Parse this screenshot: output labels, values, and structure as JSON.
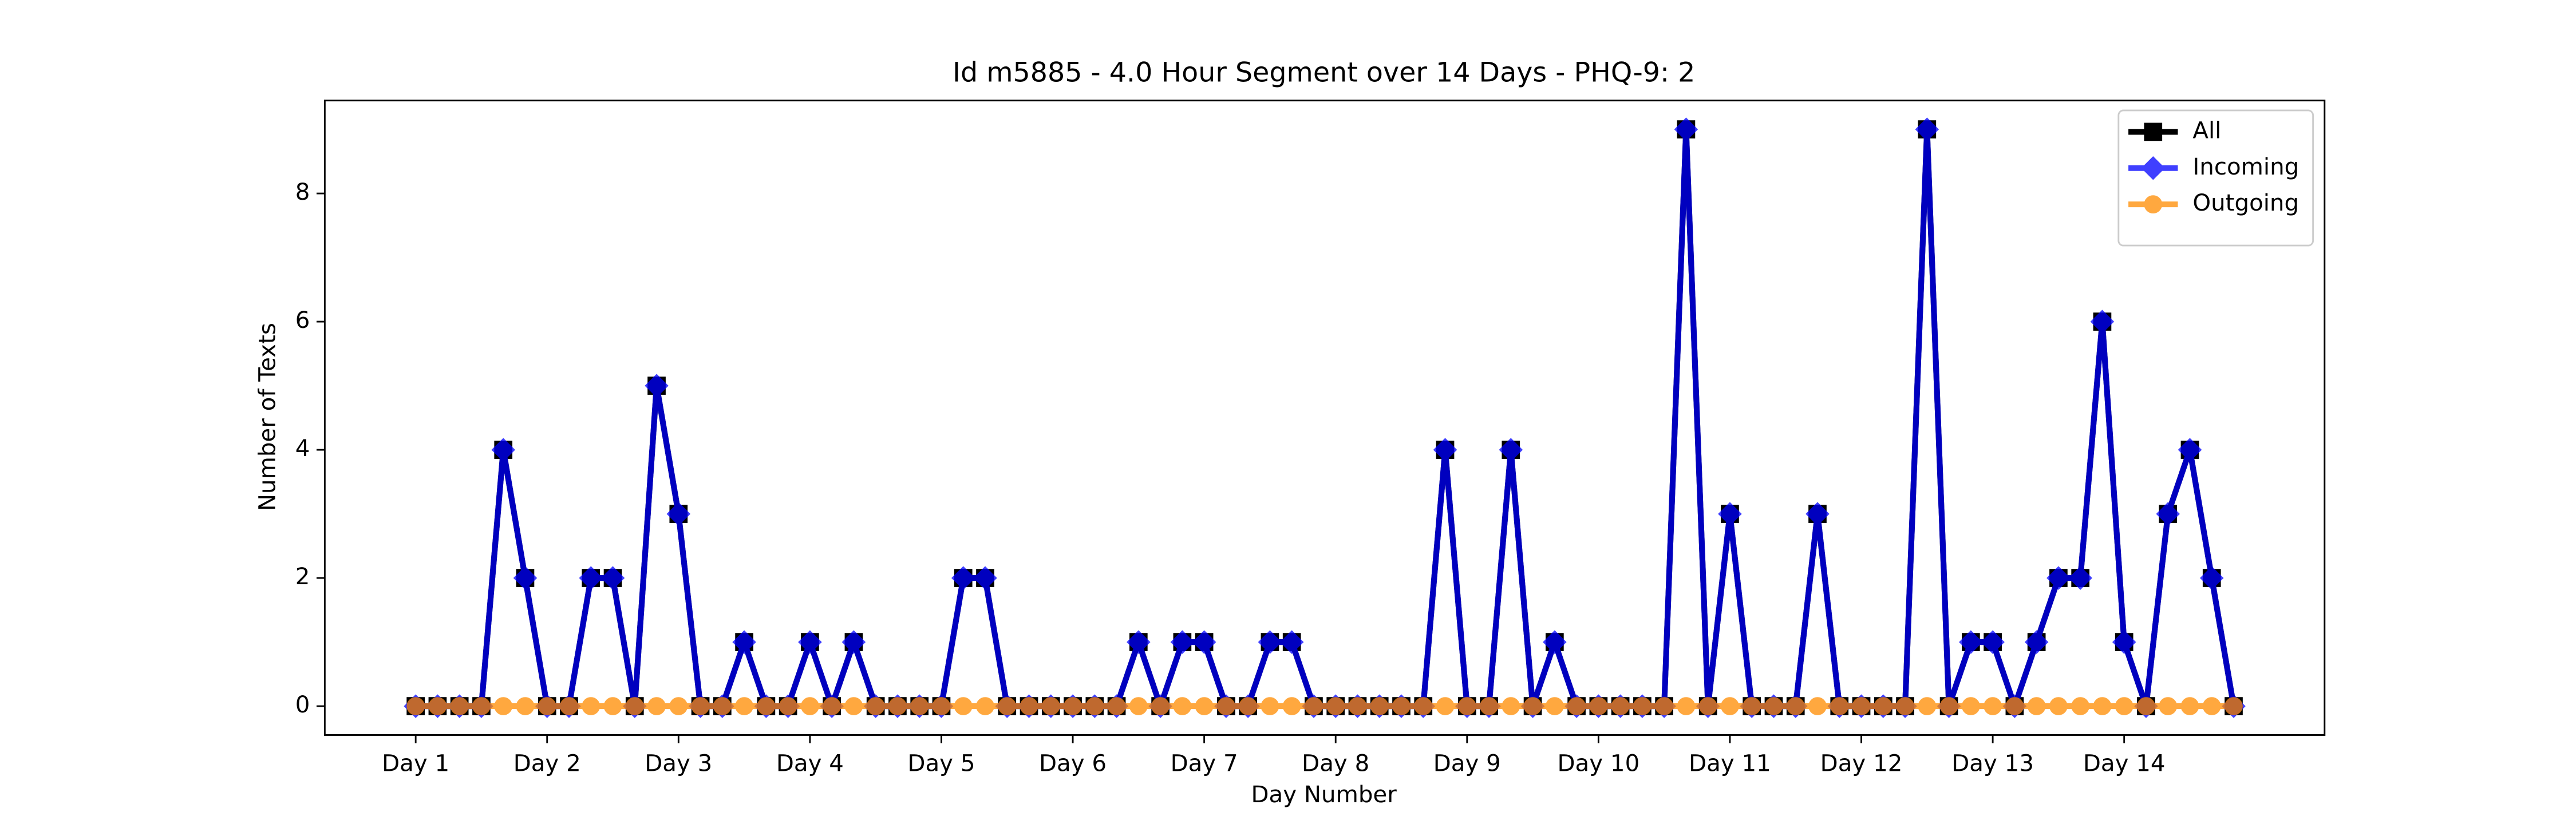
{
  "chart_data": {
    "type": "line",
    "title": "Id m5885 - 4.0 Hour Segment over 14 Days - PHQ-9: 2",
    "x_label": "Day Number",
    "y_label": "Number of Texts",
    "x": [
      0,
      1,
      2,
      3,
      4,
      5,
      6,
      7,
      8,
      9,
      10,
      11,
      12,
      13,
      14,
      15,
      16,
      17,
      18,
      19,
      20,
      21,
      22,
      23,
      24,
      25,
      26,
      27,
      28,
      29,
      30,
      31,
      32,
      33,
      34,
      35,
      36,
      37,
      38,
      39,
      40,
      41,
      42,
      43,
      44,
      45,
      46,
      47,
      48,
      49,
      50,
      51,
      52,
      53,
      54,
      55,
      56,
      57,
      58,
      59,
      60,
      61,
      62,
      63,
      64,
      65,
      66,
      67,
      68,
      69,
      70,
      71,
      72,
      73,
      74,
      75,
      76,
      77,
      78,
      79,
      80,
      81,
      82,
      83
    ],
    "series": [
      {
        "name": "All",
        "color": "#000000",
        "marker": "square",
        "values": [
          0,
          0,
          0,
          0,
          4,
          2,
          0,
          0,
          2,
          2,
          0,
          5,
          3,
          0,
          0,
          1,
          0,
          0,
          1,
          0,
          1,
          0,
          0,
          0,
          0,
          2,
          2,
          0,
          0,
          0,
          0,
          0,
          0,
          1,
          0,
          1,
          1,
          0,
          0,
          1,
          1,
          0,
          0,
          0,
          0,
          0,
          0,
          4,
          0,
          0,
          4,
          0,
          1,
          0,
          0,
          0,
          0,
          0,
          9,
          0,
          3,
          0,
          0,
          0,
          3,
          0,
          0,
          0,
          0,
          9,
          0,
          1,
          1,
          0,
          1,
          2,
          2,
          6,
          1,
          0,
          3,
          4,
          2,
          0
        ]
      },
      {
        "name": "Incoming",
        "color": "#0000ff",
        "marker": "diamond",
        "values": [
          0,
          0,
          0,
          0,
          4,
          2,
          0,
          0,
          2,
          2,
          0,
          5,
          3,
          0,
          0,
          1,
          0,
          0,
          1,
          0,
          1,
          0,
          0,
          0,
          0,
          2,
          2,
          0,
          0,
          0,
          0,
          0,
          0,
          1,
          0,
          1,
          1,
          0,
          0,
          1,
          1,
          0,
          0,
          0,
          0,
          0,
          0,
          4,
          0,
          0,
          4,
          0,
          1,
          0,
          0,
          0,
          0,
          0,
          9,
          0,
          3,
          0,
          0,
          0,
          3,
          0,
          0,
          0,
          0,
          9,
          0,
          1,
          1,
          0,
          1,
          2,
          2,
          6,
          1,
          0,
          3,
          4,
          2,
          0
        ]
      },
      {
        "name": "Outgoing",
        "color": "#ff8c00",
        "marker": "circle",
        "values": [
          0,
          0,
          0,
          0,
          0,
          0,
          0,
          0,
          0,
          0,
          0,
          0,
          0,
          0,
          0,
          0,
          0,
          0,
          0,
          0,
          0,
          0,
          0,
          0,
          0,
          0,
          0,
          0,
          0,
          0,
          0,
          0,
          0,
          0,
          0,
          0,
          0,
          0,
          0,
          0,
          0,
          0,
          0,
          0,
          0,
          0,
          0,
          0,
          0,
          0,
          0,
          0,
          0,
          0,
          0,
          0,
          0,
          0,
          0,
          0,
          0,
          0,
          0,
          0,
          0,
          0,
          0,
          0,
          0,
          0,
          0,
          0,
          0,
          0,
          0,
          0,
          0,
          0,
          0,
          0,
          0,
          0,
          0,
          0
        ]
      }
    ],
    "xlim": [
      -4.15,
      87.15
    ],
    "xticks": [
      {
        "value": 0,
        "label": "Day 1"
      },
      {
        "value": 6,
        "label": "Day 2"
      },
      {
        "value": 12,
        "label": "Day 3"
      },
      {
        "value": 18,
        "label": "Day 4"
      },
      {
        "value": 24,
        "label": "Day 5"
      },
      {
        "value": 30,
        "label": "Day 6"
      },
      {
        "value": 36,
        "label": "Day 7"
      },
      {
        "value": 42,
        "label": "Day 8"
      },
      {
        "value": 48,
        "label": "Day 9"
      },
      {
        "value": 54,
        "label": "Day 10"
      },
      {
        "value": 60,
        "label": "Day 11"
      },
      {
        "value": 66,
        "label": "Day 12"
      },
      {
        "value": 72,
        "label": "Day 13"
      },
      {
        "value": 78,
        "label": "Day 14"
      }
    ],
    "ylim": [
      -0.45,
      9.45
    ],
    "yticks": [
      0,
      2,
      4,
      6,
      8
    ],
    "legend": "upper right"
  }
}
